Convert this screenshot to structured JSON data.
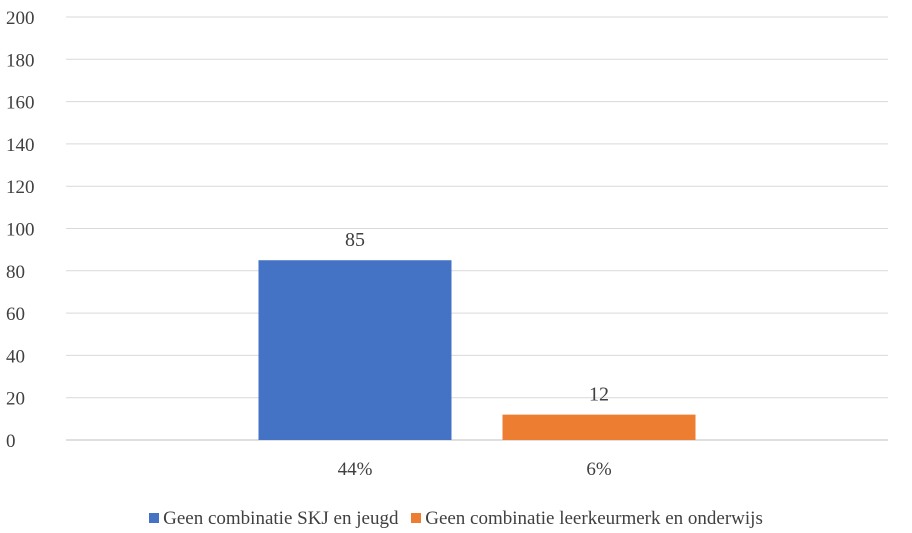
{
  "chart_data": {
    "type": "bar",
    "categories": [
      "44%",
      "6%"
    ],
    "series": [
      {
        "name": "Geen combinatie SKJ en jeugd",
        "values": [
          85,
          null
        ],
        "color": "#4472C4"
      },
      {
        "name": "Geen combinatie leerkeurmerk en onderwijs",
        "values": [
          null,
          12
        ],
        "color": "#ED7D31"
      }
    ],
    "data_labels": [
      "85",
      "12"
    ],
    "yticks": [
      "0",
      "20",
      "40",
      "60",
      "80",
      "100",
      "120",
      "140",
      "160",
      "180",
      "200"
    ],
    "ylim": [
      0,
      200
    ],
    "grid": true,
    "legend_position": "bottom",
    "title": "",
    "xlabel": "",
    "ylabel": ""
  }
}
